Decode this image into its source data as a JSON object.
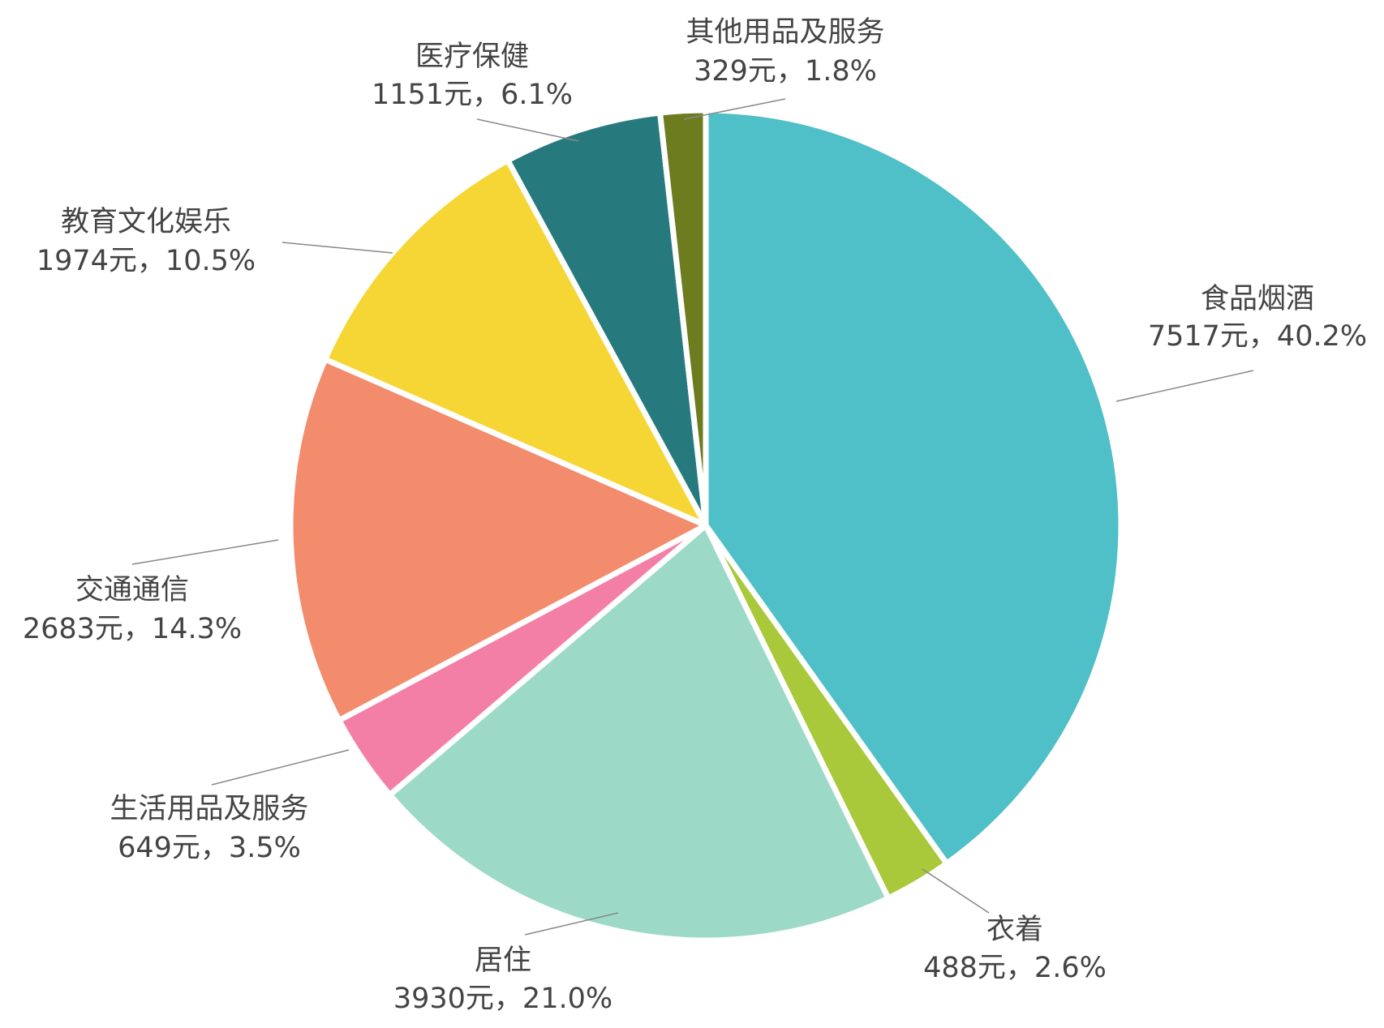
{
  "chart_data": {
    "type": "pie",
    "categories": [
      "食品烟酒",
      "衣着",
      "居住",
      "生活用品及服务",
      "交通通信",
      "教育文化娱乐",
      "医疗保健",
      "其他用品及服务"
    ],
    "values": [
      7517,
      488,
      3930,
      649,
      2683,
      1974,
      1151,
      329
    ],
    "value_labels": [
      "7517元，40.2%",
      "488元，2.6%",
      "3930元，21.0%",
      "649元，3.5%",
      "2683元，14.3%",
      "1974元，10.5%",
      "1151元，6.1%",
      "329元，1.8%"
    ],
    "colors": [
      "#4fbfc8",
      "#a9c83a",
      "#9cdac7",
      "#f47fa6",
      "#f38c6c",
      "#f6d634",
      "#267a7e",
      "#6c7c1f"
    ]
  }
}
